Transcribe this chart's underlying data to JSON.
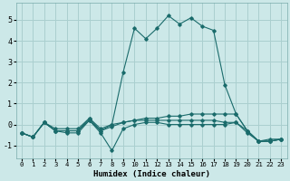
{
  "xlabel": "Humidex (Indice chaleur)",
  "background_color": "#cce8e8",
  "grid_color": "#aacfcf",
  "line_color": "#1a6b6b",
  "xlim": [
    -0.5,
    23.5
  ],
  "ylim": [
    -1.6,
    5.8
  ],
  "xticks": [
    0,
    1,
    2,
    3,
    4,
    5,
    6,
    7,
    8,
    9,
    10,
    11,
    12,
    13,
    14,
    15,
    16,
    17,
    18,
    19,
    20,
    21,
    22,
    23
  ],
  "yticks": [
    -1,
    0,
    1,
    2,
    3,
    4,
    5
  ],
  "series": [
    [
      -0.4,
      -0.6,
      0.1,
      -0.3,
      -0.3,
      -0.3,
      0.3,
      -0.3,
      -0.1,
      0.1,
      0.2,
      0.3,
      0.3,
      0.4,
      0.4,
      0.5,
      0.5,
      0.5,
      0.5,
      0.5,
      -0.3,
      -0.8,
      -0.8,
      -0.7
    ],
    [
      -0.4,
      -0.6,
      0.1,
      -0.3,
      -0.4,
      -0.4,
      0.2,
      -0.4,
      -1.25,
      -0.2,
      0.0,
      0.1,
      0.1,
      0.0,
      0.0,
      0.0,
      0.0,
      0.0,
      0.0,
      0.1,
      -0.4,
      -0.8,
      -0.8,
      -0.7
    ],
    [
      -0.4,
      -0.6,
      0.1,
      -0.3,
      -0.3,
      -0.3,
      0.2,
      -0.3,
      0.0,
      2.5,
      4.6,
      4.1,
      4.6,
      5.2,
      4.8,
      5.1,
      4.7,
      4.5,
      1.9,
      0.5,
      -0.3,
      -0.8,
      -0.7,
      -0.7
    ],
    [
      -0.4,
      -0.6,
      0.1,
      -0.2,
      -0.2,
      -0.2,
      0.3,
      -0.2,
      0.0,
      0.1,
      0.2,
      0.2,
      0.2,
      0.2,
      0.2,
      0.2,
      0.2,
      0.2,
      0.1,
      0.1,
      -0.3,
      -0.8,
      -0.8,
      -0.7
    ]
  ]
}
